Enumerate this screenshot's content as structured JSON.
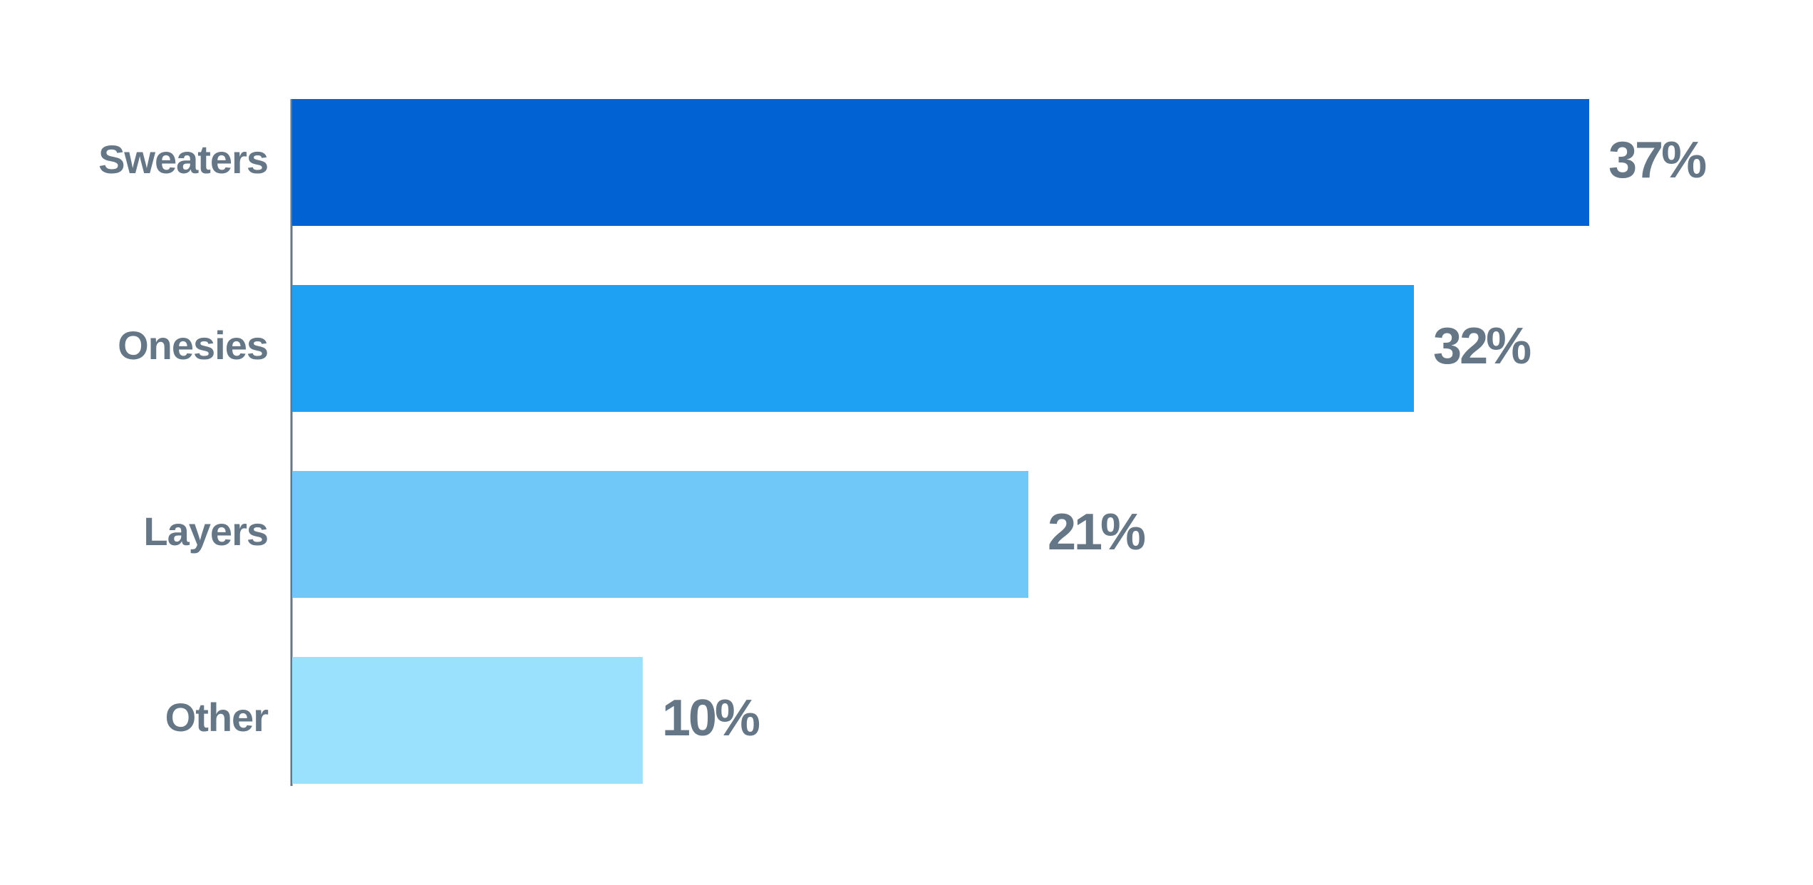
{
  "chart_data": {
    "type": "hbar",
    "categories": [
      "Sweaters",
      "Onesies",
      "Layers",
      "Other"
    ],
    "values": [
      37,
      32,
      21,
      10
    ],
    "value_labels": [
      "37%",
      "32%",
      "21%",
      "10%"
    ],
    "colors": [
      "#0062d3",
      "#1ea1f2",
      "#6fc8f7",
      "#99e1fd"
    ]
  }
}
